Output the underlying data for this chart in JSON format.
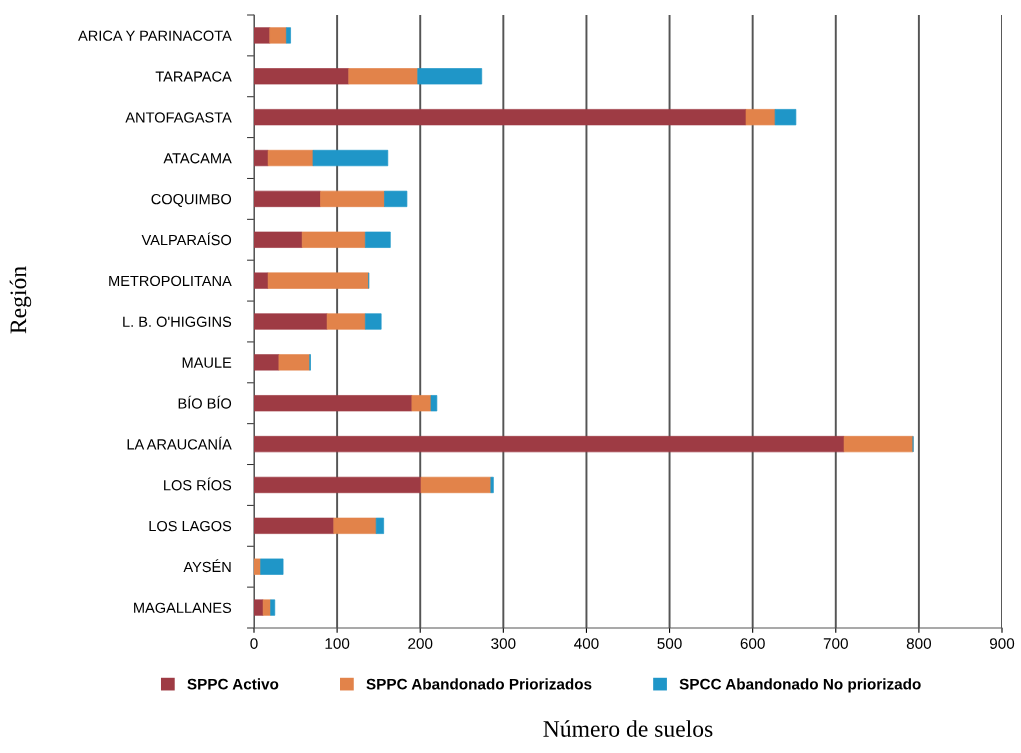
{
  "chart_data": {
    "type": "bar",
    "orientation": "horizontal",
    "stacked": true,
    "xlabel": "Número de suelos",
    "ylabel": "Región",
    "categories": [
      "ARICA Y PARINACOTA",
      "TARAPACA",
      "ANTOFAGASTA",
      "ATACAMA",
      "COQUIMBO",
      "VALPARAÍSO",
      "METROPOLITANA",
      "L. B. O'HIGGINS",
      "MAULE",
      "BÍO BÍO",
      "LA ARAUCANÍA",
      "LOS RÍOS",
      "LOS LAGOS",
      "AYSÉN",
      "MAGALLANES"
    ],
    "series": [
      {
        "name": "SPPC Activo",
        "color": "#9e3b44",
        "values": [
          19,
          114,
          592,
          17,
          80,
          58,
          17,
          88,
          30,
          190,
          710,
          201,
          96,
          0,
          11
        ]
      },
      {
        "name": "SPPC Abandonado Priorizados",
        "color": "#e2834a",
        "values": [
          20,
          83,
          35,
          54,
          77,
          76,
          121,
          46,
          37,
          23,
          83,
          84,
          51,
          8,
          9
        ]
      },
      {
        "name": "SPCC Abandonado No priorizado",
        "color": "#1f96c8",
        "values": [
          5,
          77,
          25,
          90,
          27,
          30,
          0,
          19,
          1,
          7,
          0,
          3,
          9,
          27,
          5
        ]
      }
    ],
    "xlim": [
      0,
      900
    ],
    "xticks": [
      0,
      100,
      200,
      300,
      400,
      500,
      600,
      700,
      800,
      900
    ],
    "grid": "x",
    "legend": "bottom"
  }
}
